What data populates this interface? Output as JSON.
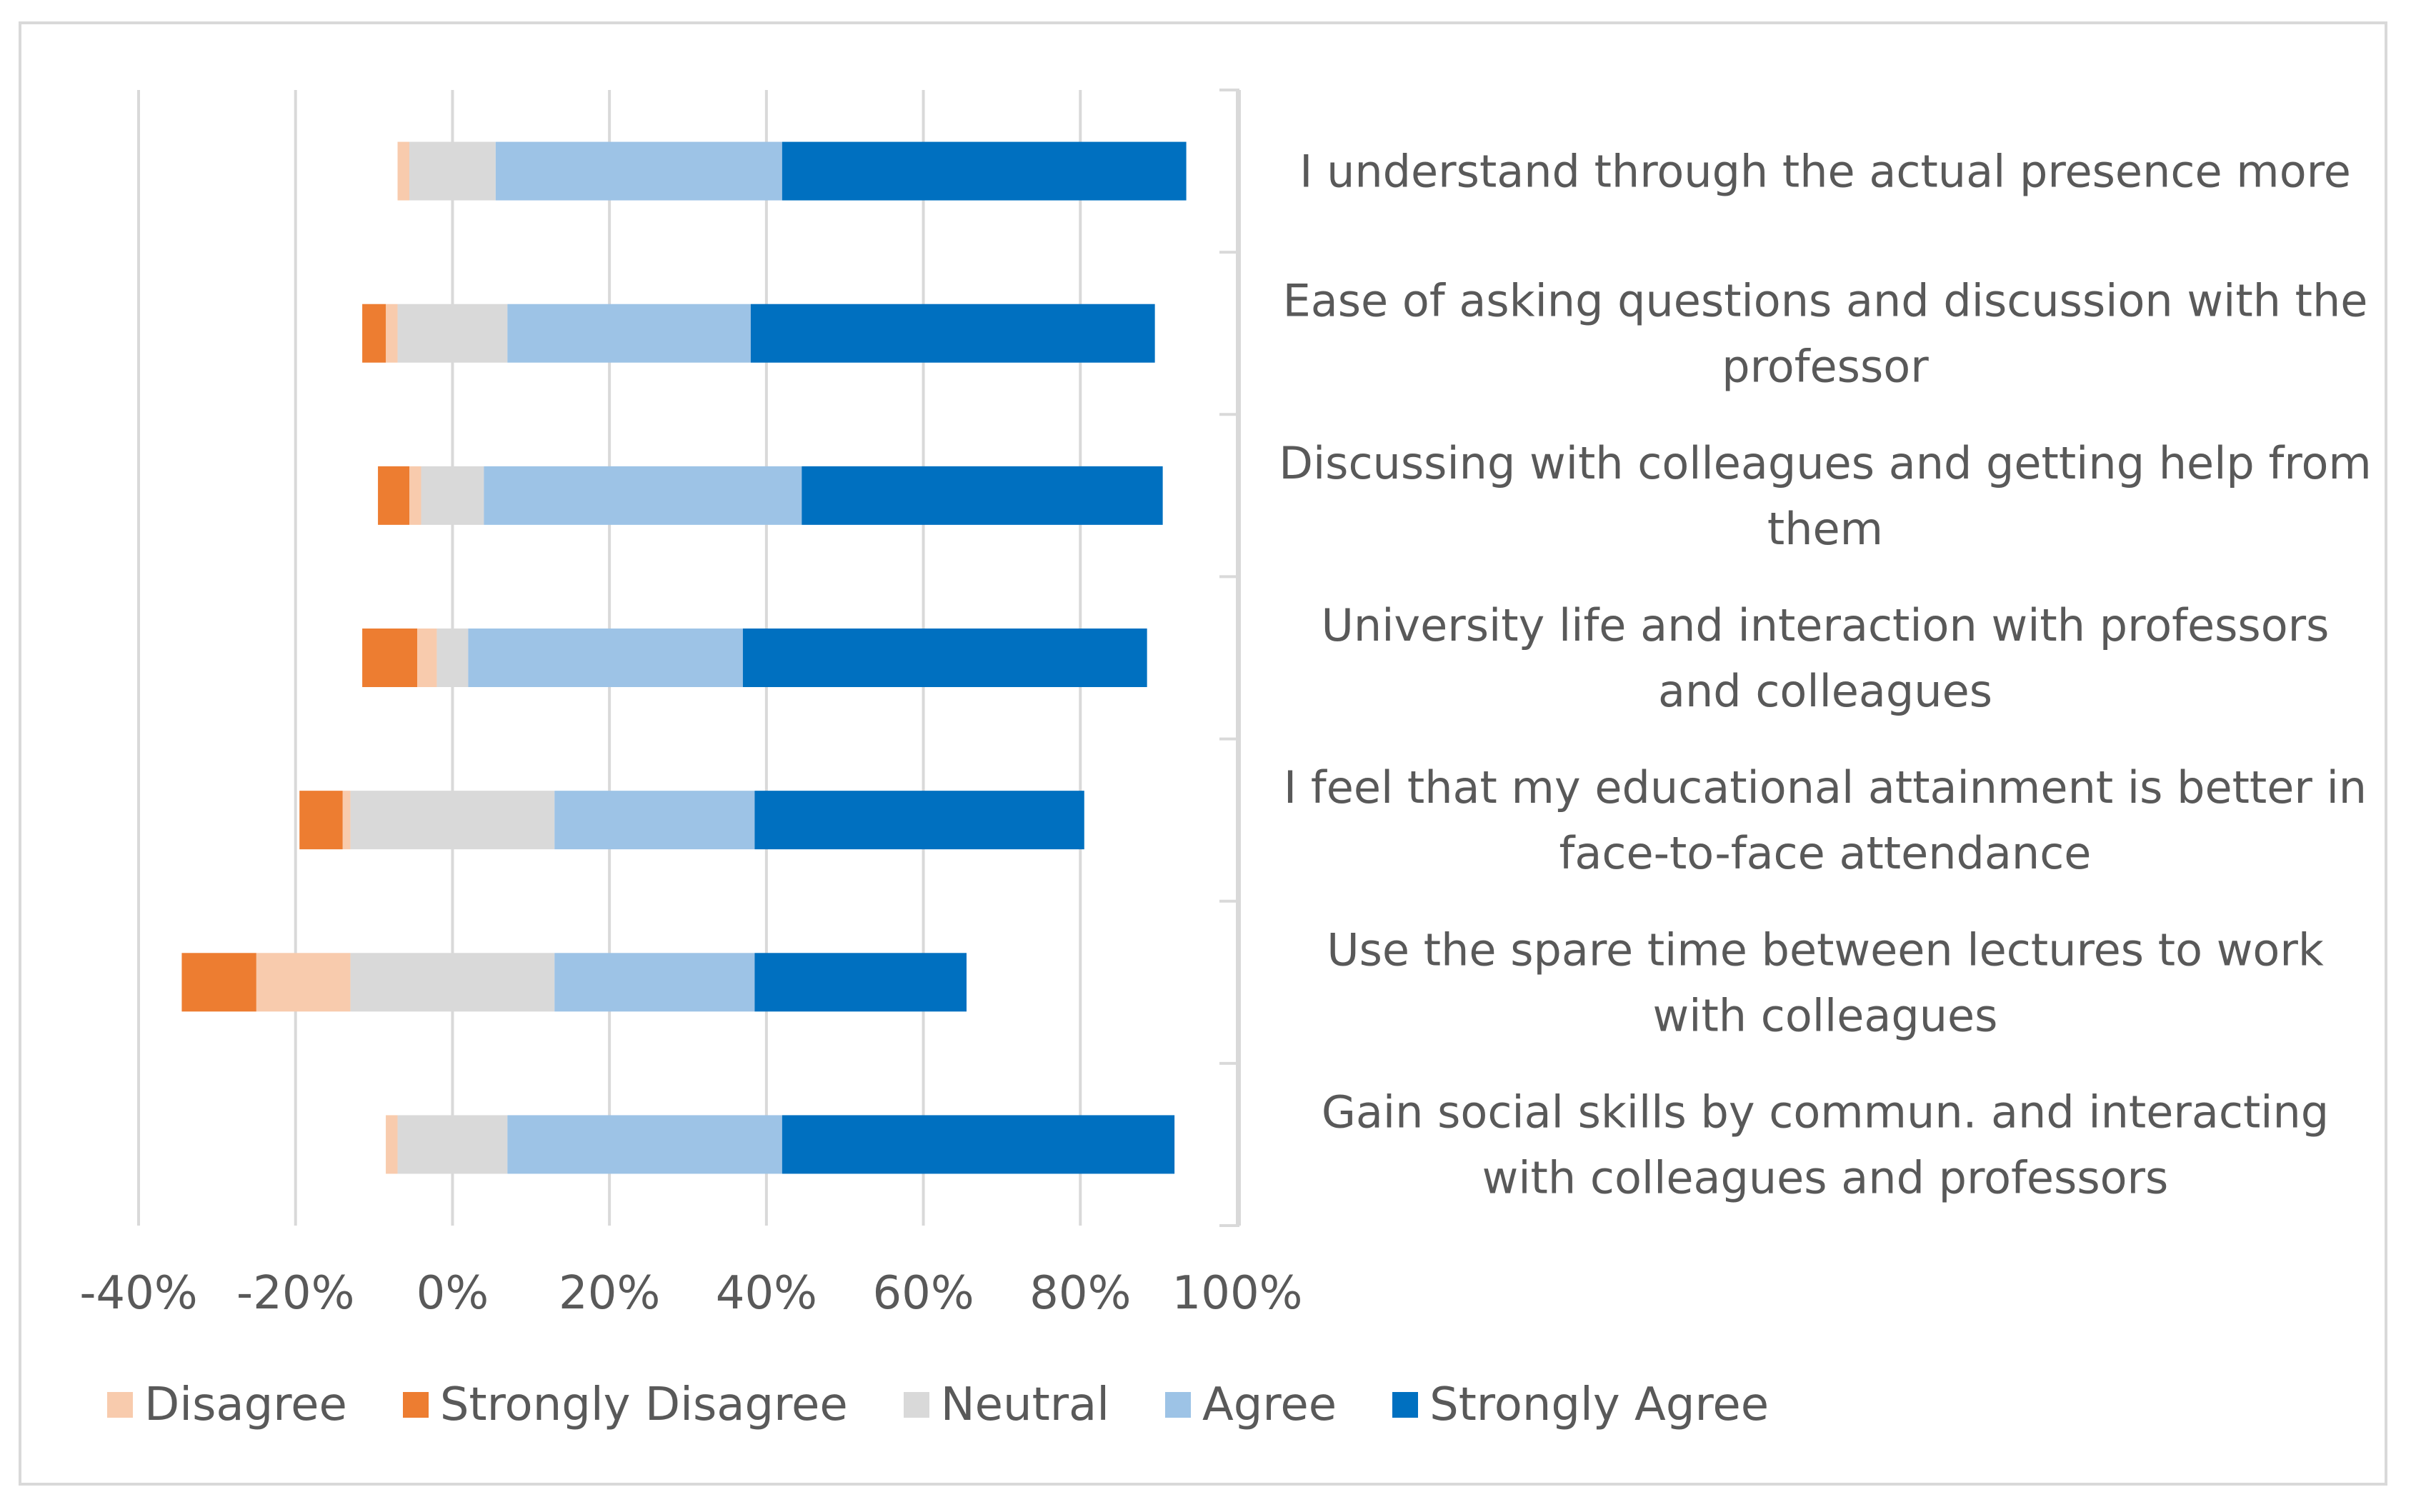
{
  "chart_data": {
    "type": "bar",
    "orientation": "horizontal",
    "stacked": true,
    "diverging": true,
    "title": "",
    "xlabel": "",
    "ylabel": "",
    "xlim": [
      -40,
      100
    ],
    "xticks": [
      "-40%",
      "-20%",
      "0%",
      "20%",
      "40%",
      "60%",
      "80%",
      "100%"
    ],
    "xtick_values": [
      -40,
      -20,
      0,
      20,
      40,
      60,
      80,
      100
    ],
    "grid": true,
    "legend_position": "bottom",
    "categories": [
      "I understand through the actual presence more",
      "Ease of asking questions and discussion with the professor",
      "Discussing with colleagues and getting help from them",
      "University life and interaction with professors and colleagues",
      "I feel that my educational attainment is better in face-to-face attendance",
      "Use the spare time between lectures to work with colleagues",
      "Gain social skills by commun. and interacting with colleagues and professors"
    ],
    "category_lines": [
      [
        "I understand through the actual presence more"
      ],
      [
        "Ease of asking questions and discussion with the",
        "professor"
      ],
      [
        "Discussing with colleagues and getting help from",
        "them"
      ],
      [
        "University life and interaction with professors",
        "and colleagues"
      ],
      [
        "I feel that my educational attainment is better in",
        "face-to-face attendance"
      ],
      [
        "Use the spare time between lectures to work",
        "with colleagues"
      ],
      [
        "Gain social skills by commun. and interacting",
        "with colleagues and professors"
      ]
    ],
    "series": [
      {
        "name": "Disagree",
        "color": "#F8CBAD",
        "values": [
          1.5,
          1.5,
          1.5,
          2.5,
          1,
          12,
          1.5
        ]
      },
      {
        "name": "Strongly Disagree",
        "color": "#ED7D31",
        "values": [
          0,
          3,
          4,
          7,
          5.5,
          9.5,
          0
        ]
      },
      {
        "name": "Neutral",
        "color": "#D9D9D9",
        "values": [
          11,
          14,
          8,
          4,
          26,
          26,
          14
        ]
      },
      {
        "name": "Agree",
        "color": "#9DC3E6",
        "values": [
          36.5,
          31,
          40.5,
          35,
          25.5,
          25.5,
          35
        ]
      },
      {
        "name": "Strongly Agree",
        "color": "#0070C0",
        "values": [
          51.5,
          51.5,
          46,
          51.5,
          42,
          27,
          50
        ]
      }
    ],
    "negative_series": [
      "Disagree",
      "Strongly Disagree"
    ],
    "neutral_series": "Neutral"
  }
}
